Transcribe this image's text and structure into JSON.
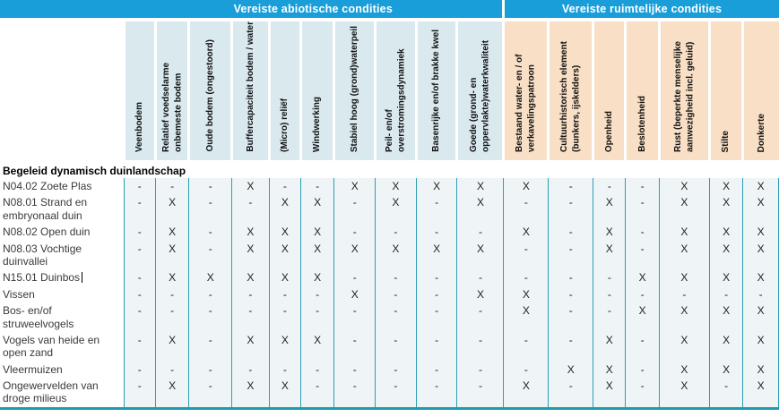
{
  "table": {
    "groups": [
      {
        "label": "Vereiste abiotische condities",
        "columns": 10
      },
      {
        "label": "Vereiste ruimtelijke condities",
        "columns": 7
      }
    ],
    "columns": [
      {
        "label": "Veenbodem",
        "group": 0
      },
      {
        "label": "Relatief voedselarme onbemeste bodem",
        "group": 0
      },
      {
        "label": "Oude bodem (ongestoord)",
        "group": 0
      },
      {
        "label": "Buffercapaciteit bodem / water",
        "group": 0
      },
      {
        "label": "(Micro) reliëf",
        "group": 0
      },
      {
        "label": "Windwerking",
        "group": 0
      },
      {
        "label": "Stabiel hoog (grond)waterpeil",
        "group": 0
      },
      {
        "label": "Peil- en/of overstromingsdynamiek",
        "group": 0
      },
      {
        "label": "Basenrijke en/of brakke kwel",
        "group": 0
      },
      {
        "label": "Goede (grond- en oppervlakte)waterkwaliteit",
        "group": 0
      },
      {
        "label": "Bestaand water- en / of verkavelingspatroon",
        "group": 1
      },
      {
        "label": "Cultuurhistorisch element (bunkers, ijskelders)",
        "group": 1
      },
      {
        "label": "Openheid",
        "group": 1
      },
      {
        "label": "Beslotenheid",
        "group": 1
      },
      {
        "label": "Rust (beperkte menselijke aanwezigheid incl. geluid)",
        "group": 1
      },
      {
        "label": "Stilte",
        "group": 1
      },
      {
        "label": "Donkerte",
        "group": 1
      }
    ],
    "section_header": "Begeleid dynamisch duinlandschap",
    "rows": [
      {
        "label": "N04.02 Zoete Plas",
        "values": [
          "-",
          "-",
          "-",
          "X",
          "-",
          "-",
          "X",
          "X",
          "X",
          "X",
          "X",
          "-",
          "-",
          "-",
          "X",
          "X",
          "X"
        ]
      },
      {
        "label": "N08.01 Strand en embryonaal duin",
        "values": [
          "-",
          "X",
          "-",
          "-",
          "X",
          "X",
          "-",
          "X",
          "-",
          "X",
          "-",
          "-",
          "X",
          "-",
          "X",
          "X",
          "X"
        ]
      },
      {
        "label": "N08.02 Open duin",
        "values": [
          "-",
          "X",
          "-",
          "X",
          "X",
          "X",
          "-",
          "-",
          "-",
          "-",
          "X",
          "-",
          "X",
          "-",
          "X",
          "X",
          "X"
        ]
      },
      {
        "label": "N08.03 Vochtige duinvallei",
        "values": [
          "-",
          "X",
          "-",
          "X",
          "X",
          "X",
          "X",
          "X",
          "X",
          "X",
          "-",
          "-",
          "X",
          "-",
          "X",
          "X",
          "X"
        ]
      },
      {
        "label": "N15.01 Duinbos",
        "caret": true,
        "values": [
          "-",
          "X",
          "X",
          "X",
          "X",
          "X",
          "-",
          "-",
          "-",
          "-",
          "-",
          "-",
          "-",
          "X",
          "X",
          "X",
          "X"
        ]
      },
      {
        "label": "Vissen",
        "values": [
          "-",
          "-",
          "-",
          "-",
          "-",
          "-",
          "X",
          "-",
          "-",
          "X",
          "X",
          "-",
          "-",
          "-",
          "-",
          "-",
          "-"
        ]
      },
      {
        "label": "Bos- en/of struweelvogels",
        "values": [
          "-",
          "-",
          "-",
          "-",
          "-",
          "-",
          "-",
          "-",
          "-",
          "-",
          "X",
          "-",
          "-",
          "X",
          "X",
          "X",
          "X"
        ]
      },
      {
        "label": "Vogels van heide en open zand",
        "values": [
          "-",
          "X",
          "-",
          "X",
          "X",
          "X",
          "-",
          "-",
          "-",
          "-",
          "-",
          "-",
          "X",
          "-",
          "X",
          "X",
          "X"
        ]
      },
      {
        "label": "Vleermuizen",
        "values": [
          "-",
          "-",
          "-",
          "-",
          "-",
          "-",
          "-",
          "-",
          "-",
          "-",
          "-",
          "X",
          "X",
          "-",
          "X",
          "X",
          "X"
        ]
      },
      {
        "label": "Ongewervelden van droge milieus",
        "values": [
          "-",
          "X",
          "-",
          "X",
          "X",
          "-",
          "-",
          "-",
          "-",
          "-",
          "X",
          "-",
          "X",
          "-",
          "X",
          "-",
          "X"
        ]
      }
    ],
    "marks": {
      "present": "X",
      "absent": "-"
    },
    "colors": {
      "band_blue": "#1A9ED9",
      "header_blue_bg": "#DAE9EE",
      "header_orange_bg": "#F8DFC6",
      "grid_teal": "#2B9FB4",
      "bottom_border": "#1E9BAF",
      "body_cell_bg": "#EFF5F7"
    }
  }
}
